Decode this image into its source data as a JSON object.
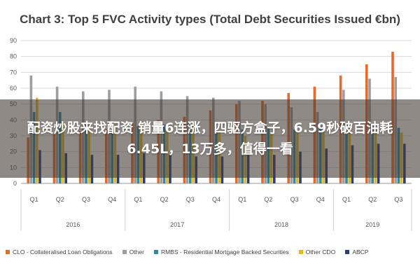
{
  "page": {
    "overlay_text": "配资炒股来找配资 销量6连涨，四驱方盒子，6.59秒破百油耗6.45L，13万多，值得一看"
  },
  "chart_data": {
    "type": "bar",
    "title": "Chart 3: Top 5 FVC Activity types (Total Debt Securities Issued €bn)",
    "ylim": [
      0,
      90
    ],
    "yticks": [
      0,
      10,
      20,
      30,
      40,
      50,
      60,
      70,
      80,
      90
    ],
    "grid": true,
    "legend_position": "bottom",
    "categories": [
      "Q1",
      "Q2",
      "Q3",
      "Q4",
      "Q1",
      "Q2",
      "Q3",
      "Q4",
      "Q1",
      "Q2",
      "Q3",
      "Q4",
      "Q1",
      "Q2",
      "Q3"
    ],
    "groups": [
      {
        "label": "2016",
        "count": 4
      },
      {
        "label": "2017",
        "count": 4
      },
      {
        "label": "2018",
        "count": 4
      },
      {
        "label": "2019",
        "count": 3
      }
    ],
    "series": [
      {
        "name": "CLO - Collateralised Loan Obligations",
        "color": "#E36C2C",
        "values": [
          29,
          31,
          33,
          34,
          38,
          40,
          42,
          46,
          50,
          52,
          57,
          61,
          68,
          75,
          83
        ]
      },
      {
        "name": "Other",
        "color": "#9E9E9E",
        "values": [
          68,
          61,
          58,
          59,
          61,
          58,
          55,
          54,
          52,
          50,
          48,
          45,
          59,
          66,
          67
        ]
      },
      {
        "name": "RMBS - Residential Mortgage Backed Securities",
        "color": "#2E8B9E",
        "values": [
          45,
          45,
          38,
          37,
          36,
          37,
          35,
          34,
          34,
          35,
          34,
          36,
          38,
          36,
          35
        ]
      },
      {
        "name": "Other CDO",
        "color": "#E8B81C",
        "values": [
          54,
          38,
          38,
          37,
          39,
          36,
          37,
          33,
          30,
          31,
          33,
          35,
          36,
          34,
          32
        ]
      },
      {
        "name": "ABCP",
        "color": "#2A3F7A",
        "values": [
          21,
          19,
          18,
          18,
          19,
          18,
          17,
          17,
          18,
          18,
          20,
          22,
          24,
          25,
          25
        ]
      }
    ]
  }
}
